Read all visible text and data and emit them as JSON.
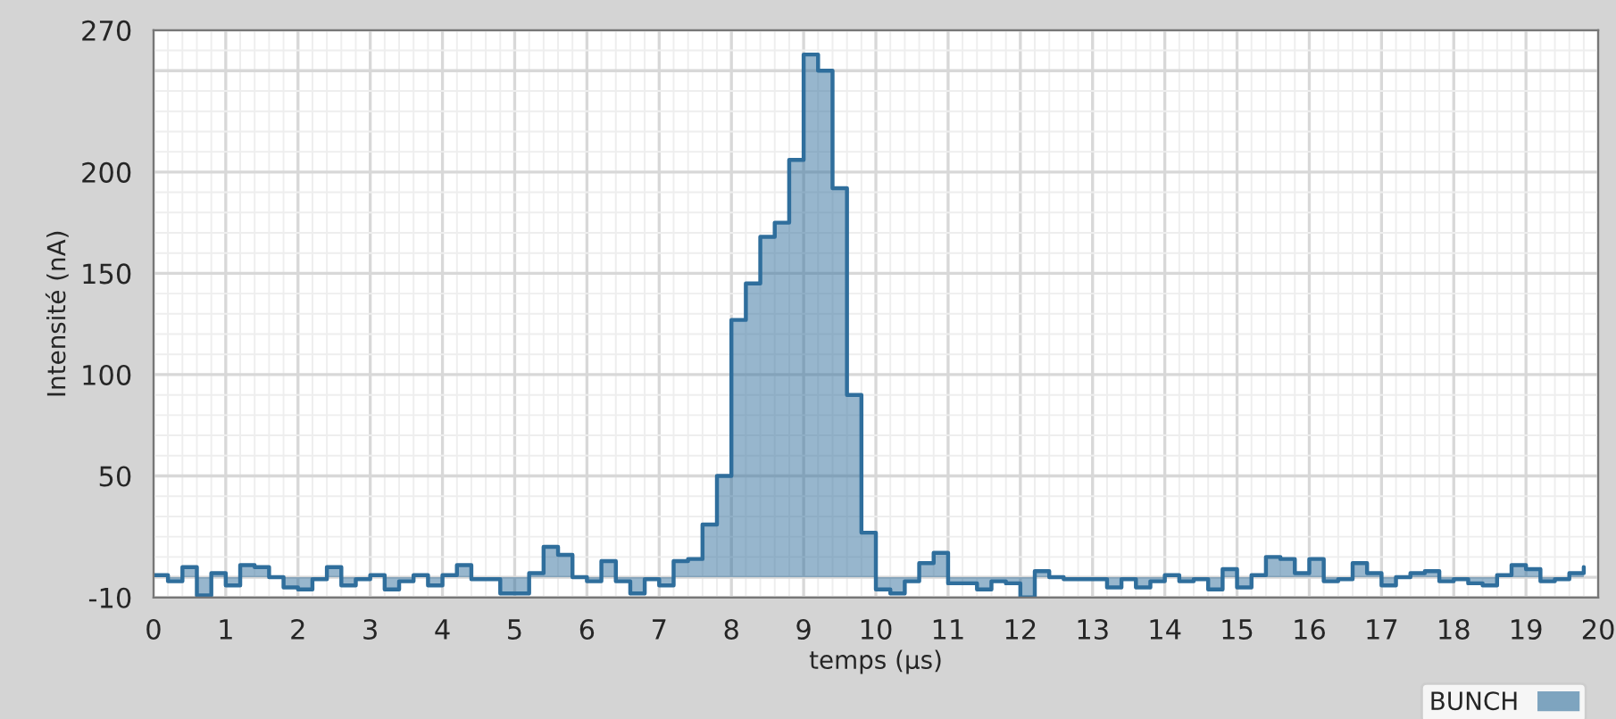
{
  "chart_data": {
    "type": "step",
    "xlabel": "temps (µs)",
    "ylabel": "Intensité (nA)",
    "x": [
      0,
      0.2,
      0.4,
      0.6,
      0.8,
      1,
      1.2,
      1.4,
      1.6,
      1.8,
      2,
      2.2,
      2.4,
      2.6,
      2.8,
      3,
      3.2,
      3.4,
      3.6,
      3.8,
      4,
      4.2,
      4.4,
      4.6,
      4.8,
      5,
      5.2,
      5.4,
      5.6,
      5.8,
      6,
      6.2,
      6.4,
      6.6,
      6.8,
      7,
      7.2,
      7.4,
      7.6,
      7.8,
      8,
      8.2,
      8.4,
      8.6,
      8.8,
      9,
      9.2,
      9.4,
      9.6,
      9.8,
      10,
      10.2,
      10.4,
      10.6,
      10.8,
      11,
      11.2,
      11.4,
      11.6,
      11.8,
      12,
      12.2,
      12.4,
      12.6,
      12.8,
      13,
      13.2,
      13.4,
      13.6,
      13.8,
      14,
      14.2,
      14.4,
      14.6,
      14.8,
      15,
      15.2,
      15.4,
      15.6,
      15.8,
      16,
      16.2,
      16.4,
      16.6,
      16.8,
      17,
      17.2,
      17.4,
      17.6,
      17.8,
      18,
      18.2,
      18.4,
      18.6,
      18.8,
      19,
      19.2,
      19.4,
      19.6,
      19.8
    ],
    "series": [
      {
        "name": "BUNCH",
        "color": "#2f6e9c",
        "values": [
          1,
          -2,
          5,
          -9,
          2,
          -4,
          6,
          5,
          0,
          -5,
          -6,
          -1,
          5,
          -4,
          -1,
          1,
          -6,
          -2,
          1,
          -4,
          1,
          6,
          -1,
          -1,
          -8,
          -8,
          2,
          15,
          11,
          0,
          -2,
          8,
          -2,
          -8,
          -1,
          -4,
          8,
          9,
          26,
          50,
          127,
          145,
          168,
          175,
          206,
          258,
          250,
          192,
          90,
          22,
          -6,
          -8,
          -2,
          7,
          12,
          -3,
          -3,
          -6,
          -2,
          -3,
          -10,
          3,
          0,
          -1,
          -1,
          -1,
          -5,
          -1,
          -5,
          -2,
          1,
          -2,
          -1,
          -6,
          4,
          -5,
          1,
          10,
          9,
          2,
          9,
          -2,
          -1,
          7,
          2,
          -4,
          0,
          2,
          3,
          -2,
          -1,
          -3,
          -4,
          1,
          6,
          4,
          -2,
          -1,
          2,
          5
        ]
      }
    ],
    "xlim": [
      0,
      20
    ],
    "xticks": [
      0,
      1,
      2,
      3,
      4,
      5,
      6,
      7,
      8,
      9,
      10,
      11,
      12,
      13,
      14,
      15,
      16,
      17,
      18,
      19,
      20
    ],
    "ylim": [
      -10,
      270
    ],
    "yticks": [
      -10,
      {
        "value": 0,
        "label": null
      },
      50,
      100,
      150,
      200,
      {
        "value": 250,
        "label": null
      },
      270
    ],
    "grid": true,
    "legend": "bottom right"
  }
}
